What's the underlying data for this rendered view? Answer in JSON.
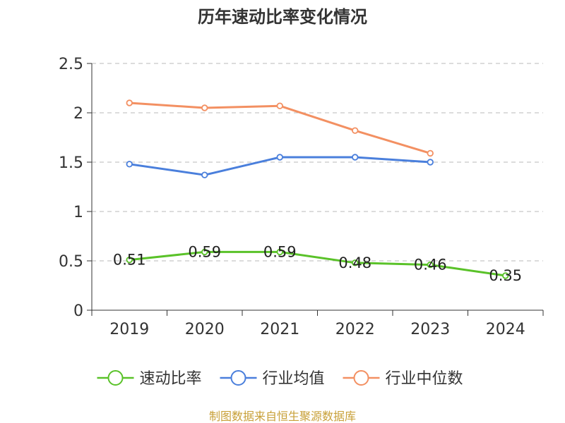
{
  "chart_data": {
    "type": "line",
    "title": "历年速动比率变化情况",
    "categories": [
      "2019",
      "2020",
      "2021",
      "2022",
      "2023",
      "2024"
    ],
    "ylim": [
      0,
      2.5
    ],
    "yticks": [
      0,
      0.5,
      1,
      1.5,
      2,
      2.5
    ],
    "ytick_labels": [
      "0",
      "0.5",
      "1",
      "1.5",
      "2",
      "2.5"
    ],
    "grid": true,
    "legend_position": "bottom",
    "series": [
      {
        "name": "速动比率",
        "color": "#5ac229",
        "values": [
          0.51,
          0.59,
          0.59,
          0.48,
          0.46,
          0.35
        ],
        "data_labels": [
          "0.51",
          "0.59",
          "0.59",
          "0.48",
          "0.46",
          "0.35"
        ]
      },
      {
        "name": "行业均值",
        "color": "#4a7fdc",
        "values": [
          1.48,
          1.37,
          1.55,
          1.55,
          1.5,
          null
        ]
      },
      {
        "name": "行业中位数",
        "color": "#f39062",
        "values": [
          2.1,
          2.05,
          2.07,
          1.82,
          1.59,
          null
        ]
      }
    ],
    "source": "制图数据来自恒生聚源数据库"
  }
}
